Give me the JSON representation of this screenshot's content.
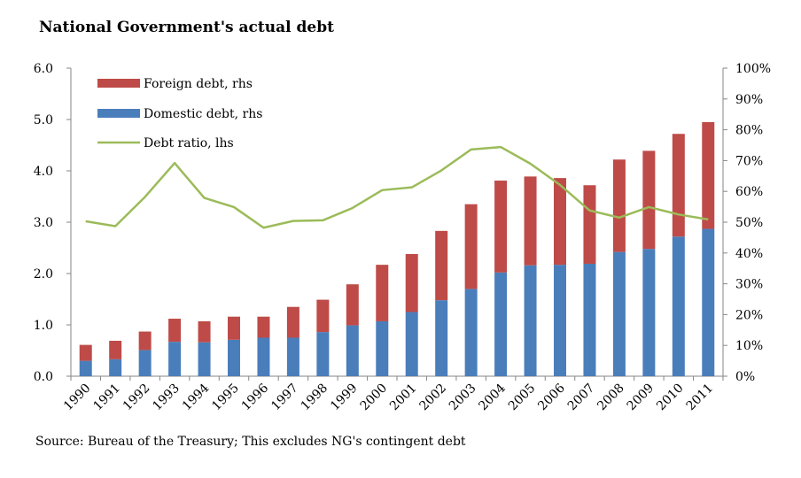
{
  "chart_data": {
    "type": "bar",
    "title": "National Government's actual debt",
    "source": "Source: Bureau of the Treasury; This excludes NG's contingent debt",
    "categories": [
      "1990",
      "1991",
      "1992",
      "1993",
      "1994",
      "1995",
      "1996",
      "1997",
      "1998",
      "1999",
      "2000",
      "2001",
      "2002",
      "2003",
      "2004",
      "2005",
      "2006",
      "2007",
      "2008",
      "2009",
      "2010",
      "2011"
    ],
    "y_left": {
      "min": 0,
      "max": 6,
      "step": 1,
      "tick_labels": [
        "0.0",
        "1.0",
        "2.0",
        "3.0",
        "4.0",
        "5.0",
        "6.0"
      ]
    },
    "y_right": {
      "min": 0,
      "max": 100,
      "step": 10,
      "tick_labels": [
        "0%",
        "10%",
        "20%",
        "30%",
        "40%",
        "50%",
        "60%",
        "70%",
        "80%",
        "90%",
        "100%"
      ]
    },
    "legend_position": "top-left",
    "series": [
      {
        "name": "Domestic debt, rhs",
        "kind": "stacked-bar",
        "axis": "left",
        "color": "#4a7ebb",
        "values": [
          0.3,
          0.33,
          0.51,
          0.67,
          0.66,
          0.71,
          0.75,
          0.75,
          0.86,
          0.99,
          1.07,
          1.25,
          1.48,
          1.7,
          2.02,
          2.16,
          2.17,
          2.19,
          2.42,
          2.48,
          2.72,
          2.87
        ]
      },
      {
        "name": "Foreign debt, rhs",
        "kind": "stacked-bar",
        "axis": "left",
        "color": "#be4b48",
        "values": [
          0.31,
          0.36,
          0.36,
          0.45,
          0.41,
          0.45,
          0.41,
          0.6,
          0.63,
          0.8,
          1.1,
          1.13,
          1.35,
          1.65,
          1.79,
          1.73,
          1.69,
          1.53,
          1.8,
          1.91,
          2.0,
          2.08
        ]
      },
      {
        "name": "Debt ratio, lhs",
        "kind": "line",
        "axis": "right",
        "color": "#9bbb59",
        "values": [
          50.3,
          48.7,
          58.2,
          69.2,
          57.9,
          54.9,
          48.2,
          50.4,
          50.6,
          54.6,
          60.4,
          61.3,
          66.8,
          73.6,
          74.4,
          69.0,
          62.1,
          53.8,
          51.5,
          54.9,
          52.5,
          50.9
        ]
      }
    ],
    "legend_order": [
      "Foreign debt, rhs",
      "Domestic debt, rhs",
      "Debt ratio, lhs"
    ]
  }
}
